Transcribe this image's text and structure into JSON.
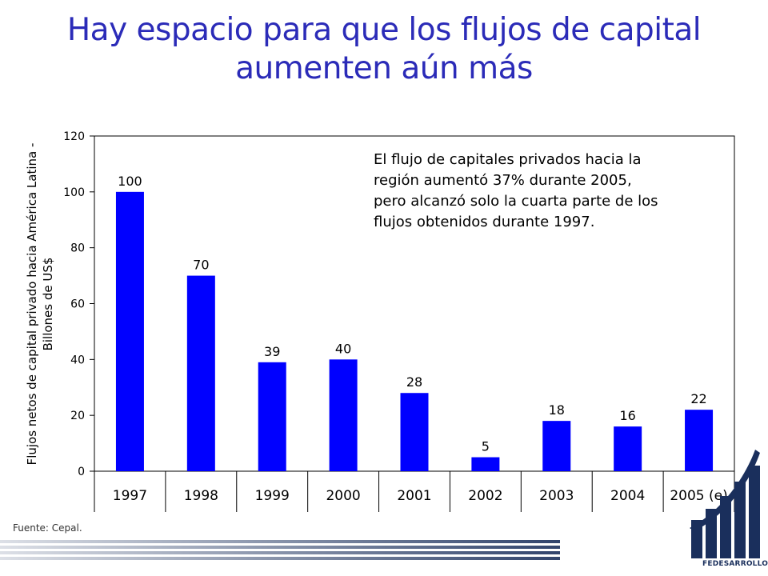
{
  "slide": {
    "title_line1": "Hay espacio para que los flujos de capital",
    "title_line2": "aumenten aún más",
    "annotation": [
      "El flujo de capitales privados hacia la",
      "región aumentó 37% durante 2005,",
      "pero alcanzó solo la cuarta parte de los",
      "flujos obtenidos durante 1997."
    ],
    "source": "Fuente: Cepal.",
    "logo_text": "FEDESARROLLO",
    "colors": {
      "title": "#2b2bb8",
      "bars": "#0000ff",
      "logo": "#1a2f5c",
      "band": "#1a2f5c"
    }
  },
  "chart_data": {
    "type": "bar",
    "categories": [
      "1997",
      "1998",
      "1999",
      "2000",
      "2001",
      "2002",
      "2003",
      "2004",
      "2005 (e)"
    ],
    "values": [
      100,
      70,
      39,
      40,
      28,
      5,
      18,
      16,
      22
    ],
    "data_labels": [
      "100",
      "70",
      "39",
      "40",
      "28",
      "5",
      "18",
      "16",
      "22"
    ],
    "ylabel_line1": "Flujos netos de capital privado hacia América Latina -",
    "ylabel_line2": "Billones de US$",
    "ylim": [
      0,
      120
    ],
    "yticks": [
      0,
      20,
      40,
      60,
      80,
      100,
      120
    ],
    "ytick_labels": [
      "0",
      "20",
      "40",
      "60",
      "80",
      "100",
      "120"
    ],
    "grid": false,
    "legend": "none"
  }
}
